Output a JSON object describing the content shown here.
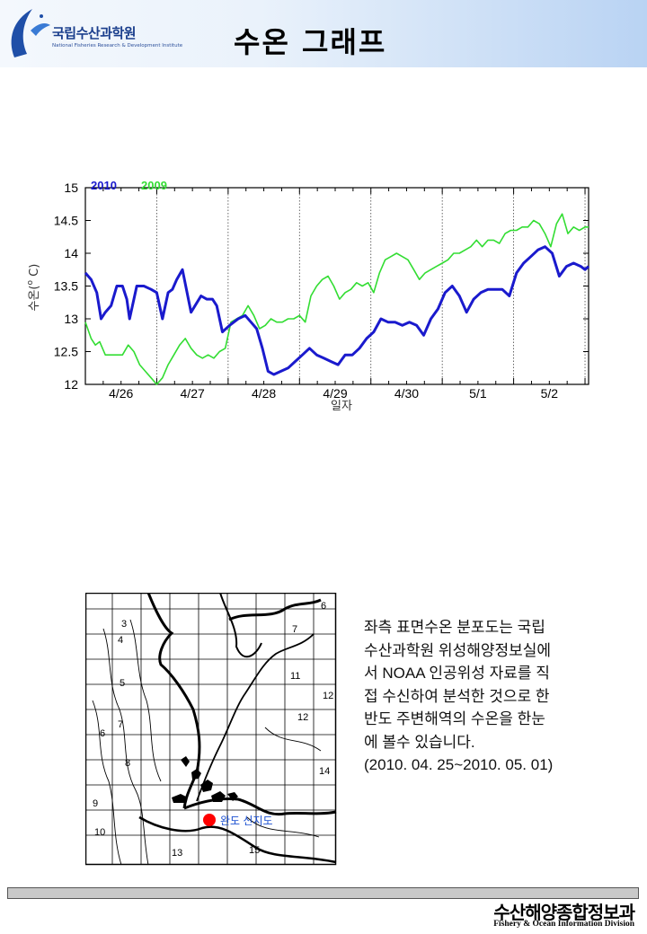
{
  "header": {
    "org_name": "국립수산과학원",
    "org_sub": "National Fisheries Research & Development Institute",
    "title": "수온 그래프"
  },
  "chart_data": {
    "type": "line",
    "title": "수온 그래프",
    "xlabel": "일자",
    "ylabel": "수온(°C)",
    "ylabel_parts": {
      "prefix": "수온(",
      "sup": "o",
      "suffix": " C)"
    },
    "ylim": [
      12,
      15
    ],
    "yticks": [
      "12",
      "12.5",
      "13",
      "13.5",
      "14",
      "14.5",
      "15"
    ],
    "xlim": [
      0,
      7.05
    ],
    "categories": [
      "4/26",
      "4/27",
      "4/28",
      "4/29",
      "4/30",
      "5/1",
      "5/2"
    ],
    "legend": [
      "2010",
      "2009"
    ],
    "legend_position": "top-left",
    "series": [
      {
        "name": "2010",
        "color": "#1a1acd",
        "x": [
          0,
          0.08,
          0.16,
          0.22,
          0.28,
          0.36,
          0.44,
          0.52,
          0.58,
          0.62,
          0.66,
          0.72,
          0.82,
          0.92,
          1.0,
          1.08,
          1.16,
          1.22,
          1.28,
          1.36,
          1.48,
          1.62,
          1.7,
          1.78,
          1.84,
          1.92,
          2.02,
          2.14,
          2.24,
          2.32,
          2.4,
          2.48,
          2.56,
          2.64,
          2.74,
          2.84,
          2.94,
          3.04,
          3.14,
          3.24,
          3.34,
          3.44,
          3.54,
          3.64,
          3.74,
          3.84,
          3.94,
          4.04,
          4.14,
          4.24,
          4.34,
          4.44,
          4.54,
          4.64,
          4.74,
          4.84,
          4.94,
          5.04,
          5.14,
          5.24,
          5.34,
          5.44,
          5.54,
          5.64,
          5.74,
          5.84,
          5.94,
          6.04,
          6.14,
          6.24,
          6.34,
          6.44,
          6.54,
          6.64,
          6.74,
          6.84,
          6.94,
          7.0,
          7.05
        ],
        "values": [
          13.7,
          13.6,
          13.4,
          13.0,
          13.1,
          13.2,
          13.5,
          13.5,
          13.3,
          13.0,
          13.2,
          13.5,
          13.5,
          13.45,
          13.4,
          13.0,
          13.4,
          13.45,
          13.6,
          13.75,
          13.1,
          13.35,
          13.3,
          13.3,
          13.2,
          12.8,
          12.9,
          13.0,
          13.05,
          12.95,
          12.85,
          12.55,
          12.2,
          12.15,
          12.2,
          12.25,
          12.35,
          12.45,
          12.55,
          12.45,
          12.4,
          12.35,
          12.3,
          12.45,
          12.45,
          12.55,
          12.7,
          12.8,
          13.0,
          12.95,
          12.95,
          12.9,
          12.95,
          12.9,
          12.75,
          13.0,
          13.15,
          13.4,
          13.5,
          13.35,
          13.1,
          13.3,
          13.4,
          13.45,
          13.45,
          13.45,
          13.35,
          13.7,
          13.85,
          13.95,
          14.05,
          14.1,
          14.0,
          13.65,
          13.8,
          13.85,
          13.8,
          13.75,
          13.8
        ]
      },
      {
        "name": "2009",
        "color": "#33dd33",
        "x": [
          0,
          0.08,
          0.14,
          0.2,
          0.28,
          0.36,
          0.44,
          0.52,
          0.6,
          0.68,
          0.76,
          0.84,
          0.92,
          1.0,
          1.08,
          1.16,
          1.24,
          1.32,
          1.4,
          1.48,
          1.56,
          1.64,
          1.72,
          1.8,
          1.88,
          1.96,
          2.04,
          2.12,
          2.2,
          2.28,
          2.36,
          2.44,
          2.52,
          2.6,
          2.68,
          2.76,
          2.84,
          2.92,
          3.0,
          3.08,
          3.16,
          3.24,
          3.32,
          3.4,
          3.48,
          3.56,
          3.64,
          3.72,
          3.8,
          3.88,
          3.96,
          4.04,
          4.12,
          4.2,
          4.28,
          4.36,
          4.44,
          4.52,
          4.6,
          4.68,
          4.76,
          4.84,
          4.92,
          5.0,
          5.08,
          5.16,
          5.24,
          5.32,
          5.4,
          5.48,
          5.56,
          5.64,
          5.72,
          5.8,
          5.88,
          5.96,
          6.04,
          6.12,
          6.2,
          6.28,
          6.36,
          6.44,
          6.52,
          6.6,
          6.68,
          6.76,
          6.84,
          6.92,
          7.0,
          7.05
        ],
        "values": [
          12.95,
          12.7,
          12.6,
          12.65,
          12.45,
          12.45,
          12.45,
          12.45,
          12.6,
          12.5,
          12.3,
          12.2,
          12.1,
          12.0,
          12.1,
          12.3,
          12.45,
          12.6,
          12.7,
          12.55,
          12.45,
          12.4,
          12.45,
          12.4,
          12.5,
          12.55,
          12.95,
          13.0,
          13.05,
          13.2,
          13.05,
          12.85,
          12.9,
          13.0,
          12.95,
          12.95,
          13.0,
          13.0,
          13.05,
          12.95,
          13.35,
          13.5,
          13.6,
          13.65,
          13.5,
          13.3,
          13.4,
          13.45,
          13.55,
          13.5,
          13.55,
          13.4,
          13.7,
          13.9,
          13.95,
          14.0,
          13.95,
          13.9,
          13.75,
          13.6,
          13.7,
          13.75,
          13.8,
          13.85,
          13.9,
          14.0,
          14.0,
          14.05,
          14.1,
          14.2,
          14.1,
          14.2,
          14.2,
          14.15,
          14.3,
          14.35,
          14.35,
          14.4,
          14.4,
          14.5,
          14.45,
          14.3,
          14.1,
          14.45,
          14.6,
          14.3,
          14.4,
          14.35,
          14.4,
          14.4
        ]
      }
    ]
  },
  "map": {
    "contour_labels": [
      "3",
      "4",
      "5",
      "6",
      "7",
      "8",
      "9",
      "10",
      "12",
      "13",
      "14",
      "15",
      "6",
      "7",
      "11",
      "12"
    ],
    "marker_label": "완도 신지도"
  },
  "description": {
    "lines": [
      "좌측 표면수온 분포도는 국립",
      "수산과학원 위성해양정보실에",
      "서 NOAA 인공위성 자료를 직",
      "접 수신하여 분석한 것으로 한",
      "반도 주변해역의 수온을 한눈",
      "에 볼수 있습니다."
    ],
    "period": "(2010. 04. 25~2010. 05. 01)"
  },
  "footer": {
    "org_kr": "수산해양종합정보과",
    "org_en": "Fishery & Ocean Information Division"
  }
}
